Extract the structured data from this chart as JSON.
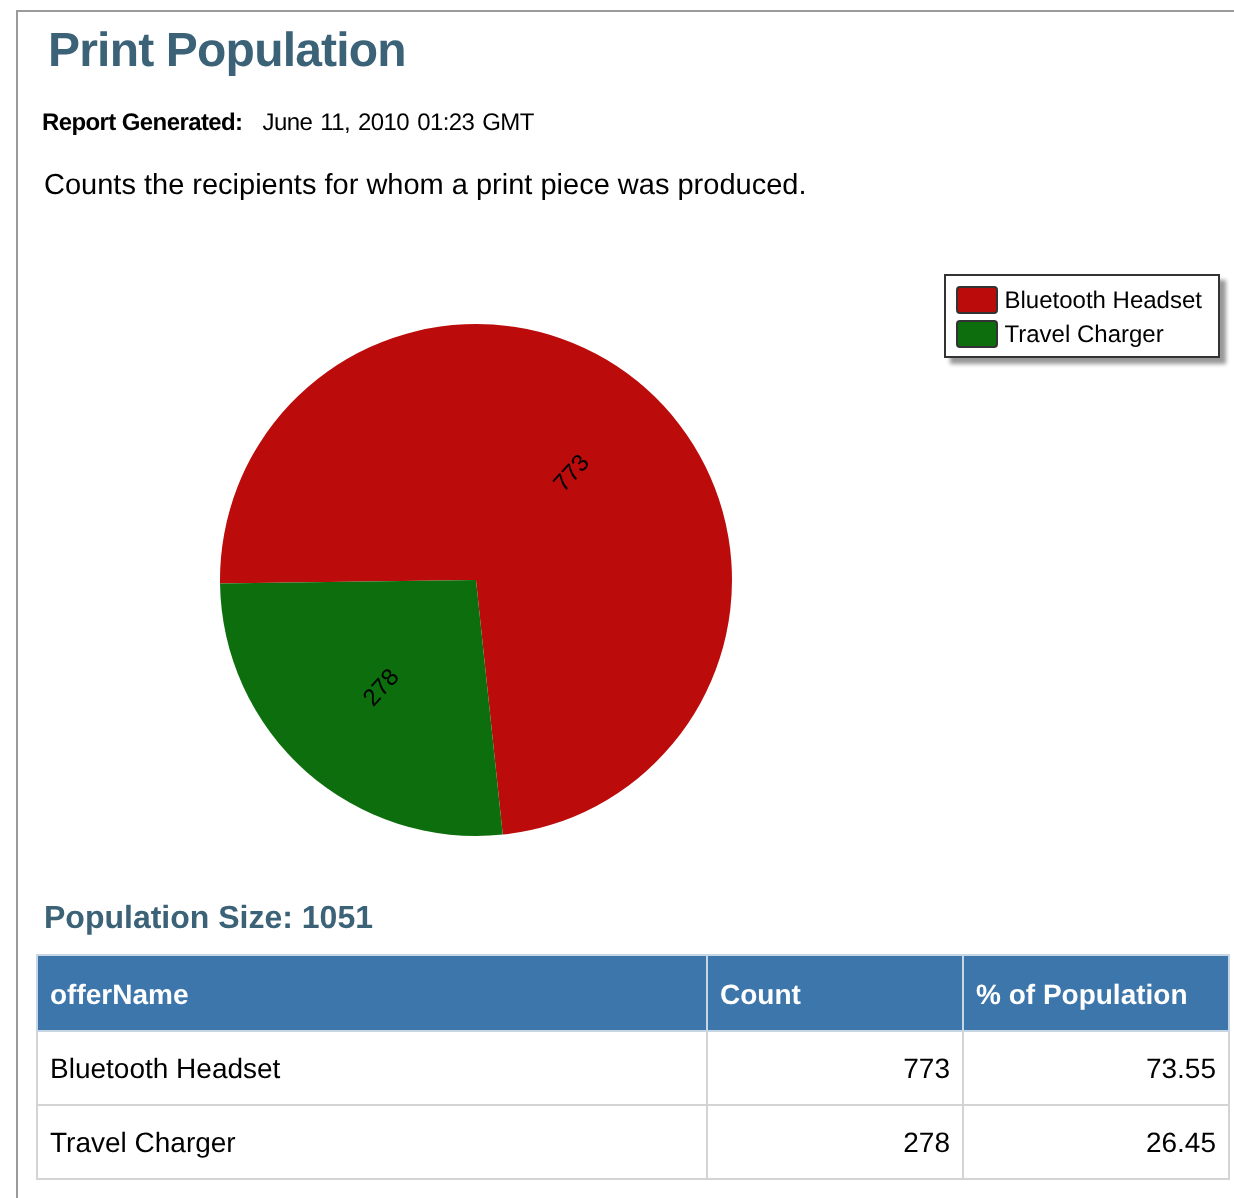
{
  "chart_data": {
    "type": "pie",
    "title": "Print Population",
    "subtitle": "Report Generated: June 11, 2010 01:23 GMT",
    "categories": [
      "Bluetooth Headset",
      "Travel Charger"
    ],
    "values": [
      773,
      278
    ],
    "colors": [
      "#bb0b0b",
      "#0d6e0d"
    ],
    "data_labels": true,
    "legend": "top right",
    "annotations": [
      "Counts the recipients for whom a print piece was produced.",
      "Population Size: 1051",
      "offerName",
      "Count",
      "% of Population",
      "773",
      "73.55",
      "278",
      "26.45"
    ]
  }
}
